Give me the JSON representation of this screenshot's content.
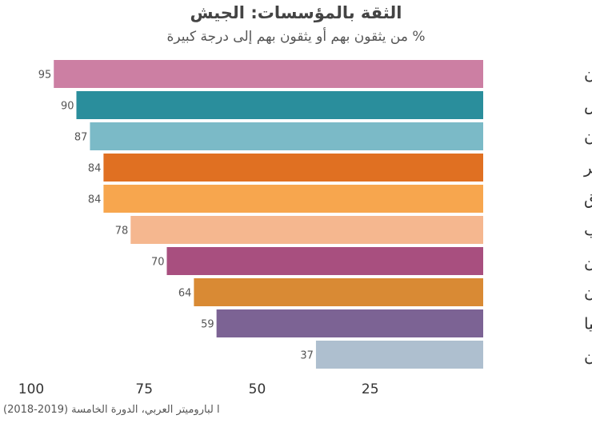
{
  "chart_data": {
    "type": "bar",
    "orientation": "horizontal",
    "title": "الثقة بالمؤسسات: الجيش",
    "subtitle": "% من يثقون بهم أو يثقون بهم  إلى درجة كبيرة",
    "categories": [
      "الأردن",
      "تونس",
      "لبنان",
      "مصر",
      "العراق",
      "المغرب",
      "اليمن",
      "السودان",
      "ليبيا",
      "فلسطين"
    ],
    "values": [
      95,
      90,
      87,
      84,
      84,
      78,
      70,
      64,
      59,
      37
    ],
    "colors": [
      "#cc7fa3",
      "#2a8e9c",
      "#7bbac7",
      "#e07022",
      "#f7a64e",
      "#f5b78f",
      "#a84f7f",
      "#d98a34",
      "#7c6394",
      "#aebfcf"
    ],
    "x_ticks": [
      100,
      75,
      50,
      25
    ],
    "xlim": [
      0,
      100
    ],
    "x_reversed": true,
    "source": "ا لباروميتر العربي، الدورة الخامسة (2019-2018)"
  }
}
